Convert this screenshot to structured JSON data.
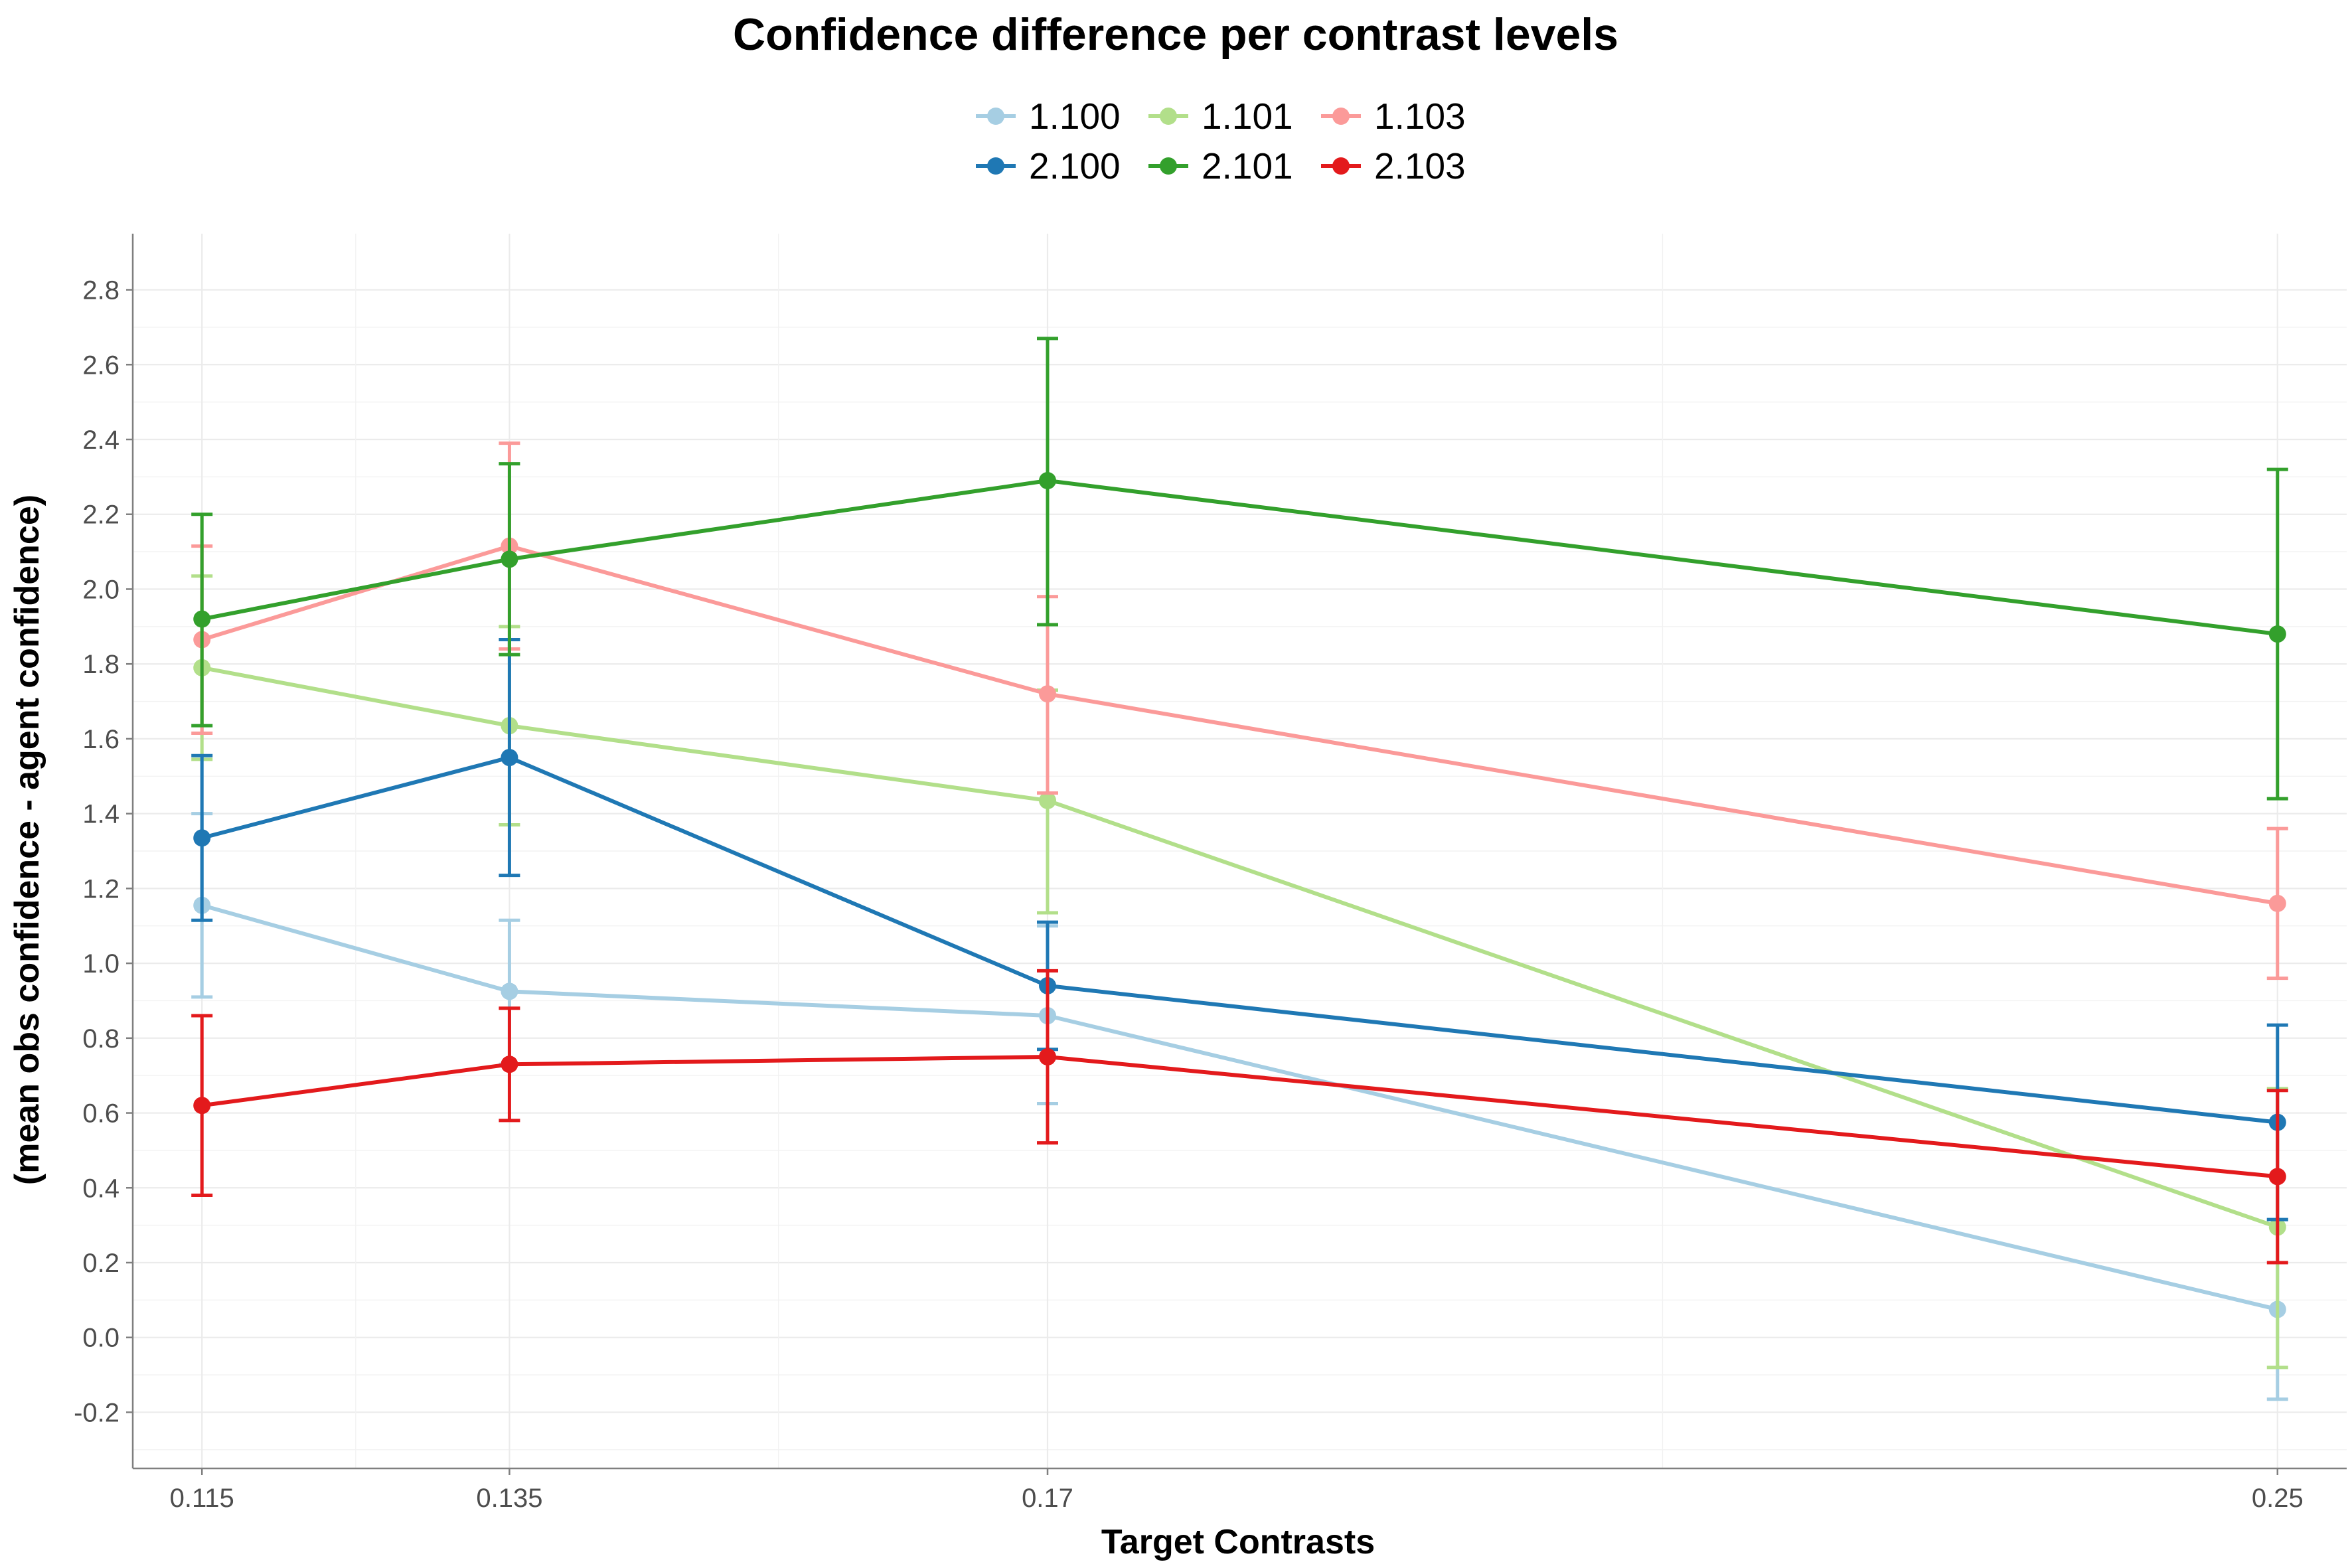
{
  "chart_data": {
    "type": "line",
    "title": "Confidence difference per contrast levels",
    "xlabel": "Target Contrasts",
    "ylabel": "(mean obs confidence - agent confidence)",
    "x": [
      0.115,
      0.135,
      0.17,
      0.25
    ],
    "x_tick_labels": [
      "0.115",
      "0.135",
      "0.17",
      "0.25"
    ],
    "xlim": [
      0.1105,
      0.2545
    ],
    "ylim": [
      -0.35,
      2.95
    ],
    "y_ticks": [
      -0.2,
      0.0,
      0.2,
      0.4,
      0.6,
      0.8,
      1.0,
      1.2,
      1.4,
      1.6,
      1.8,
      2.0,
      2.2,
      2.4,
      2.6,
      2.8
    ],
    "y_tick_labels": [
      "-0.2",
      "0.0",
      "0.2",
      "0.4",
      "0.6",
      "0.8",
      "1.0",
      "1.2",
      "1.4",
      "1.6",
      "1.8",
      "2.0",
      "2.2",
      "2.4",
      "2.6",
      "2.8"
    ],
    "grid": true,
    "legend_position": "top",
    "series": [
      {
        "name": "1.100",
        "color": "#a6cee3",
        "y": [
          1.155,
          0.925,
          0.86,
          0.075
        ],
        "err_low": [
          0.91,
          0.73,
          0.625,
          -0.165
        ],
        "err_high": [
          1.4,
          1.115,
          1.1,
          0.315
        ]
      },
      {
        "name": "1.101",
        "color": "#b2df8a",
        "y": [
          1.79,
          1.635,
          1.435,
          0.295
        ],
        "err_low": [
          1.545,
          1.37,
          1.135,
          -0.08
        ],
        "err_high": [
          2.035,
          1.9,
          1.73,
          0.665
        ]
      },
      {
        "name": "1.103",
        "color": "#fb9a99",
        "y": [
          1.865,
          2.115,
          1.72,
          1.16
        ],
        "err_low": [
          1.615,
          1.84,
          1.455,
          0.96
        ],
        "err_high": [
          2.115,
          2.39,
          1.98,
          1.36
        ]
      },
      {
        "name": "2.100",
        "color": "#1f78b4",
        "y": [
          1.335,
          1.55,
          0.94,
          0.575
        ],
        "err_low": [
          1.115,
          1.235,
          0.77,
          0.315
        ],
        "err_high": [
          1.555,
          1.865,
          1.11,
          0.835
        ]
      },
      {
        "name": "2.101",
        "color": "#33a02c",
        "y": [
          1.92,
          2.08,
          2.29,
          1.88
        ],
        "err_low": [
          1.635,
          1.825,
          1.905,
          1.44
        ],
        "err_high": [
          2.2,
          2.335,
          2.67,
          2.32
        ]
      },
      {
        "name": "2.103",
        "color": "#e31a1c",
        "y": [
          0.62,
          0.73,
          0.75,
          0.43
        ],
        "err_low": [
          0.38,
          0.58,
          0.52,
          0.2
        ],
        "err_high": [
          0.86,
          0.88,
          0.98,
          0.66
        ]
      }
    ]
  }
}
